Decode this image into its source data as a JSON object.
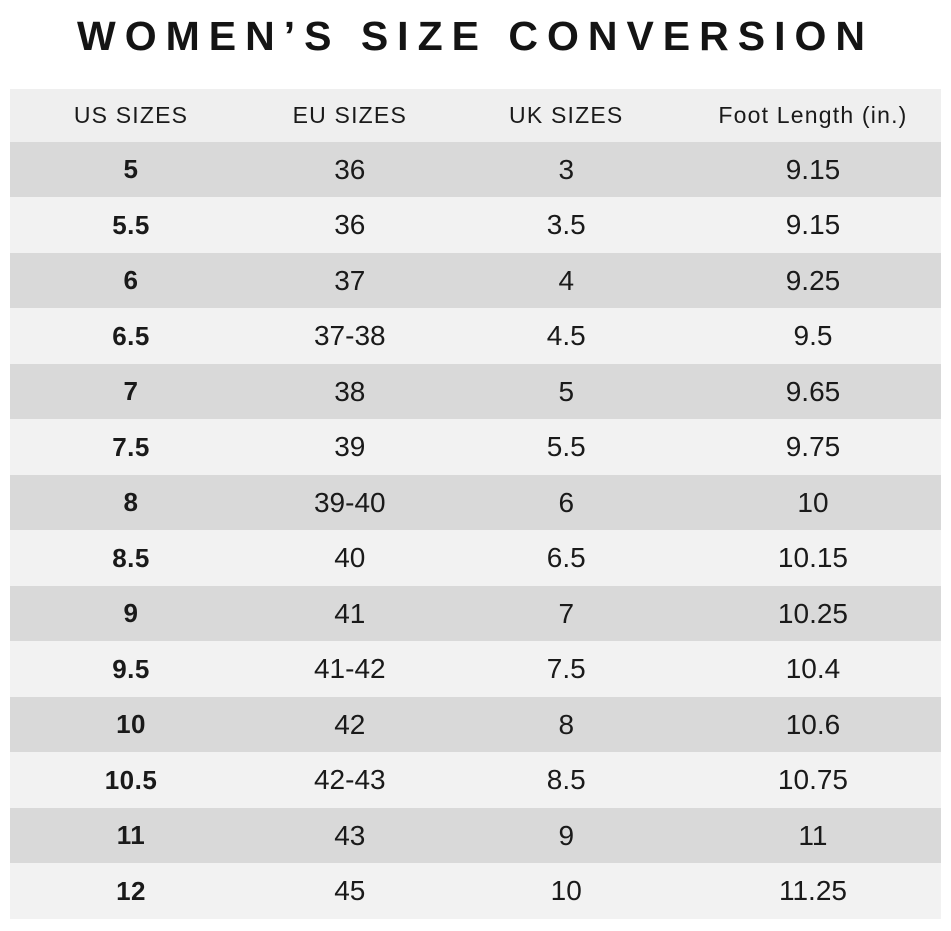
{
  "title": "WOMEN’S SIZE CONVERSION",
  "chart_data": {
    "type": "table",
    "title": "WOMEN’S SIZE CONVERSION",
    "columns": [
      "US SIZES",
      "EU SIZES",
      "UK SIZES",
      "Foot Length (in.)"
    ],
    "column_keys": [
      "us",
      "eu",
      "uk",
      "foot-length"
    ],
    "rows": [
      [
        "5",
        "36",
        "3",
        "9.15"
      ],
      [
        "5.5",
        "36",
        "3.5",
        "9.15"
      ],
      [
        "6",
        "37",
        "4",
        "9.25"
      ],
      [
        "6.5",
        "37-38",
        "4.5",
        "9.5"
      ],
      [
        "7",
        "38",
        "5",
        "9.65"
      ],
      [
        "7.5",
        "39",
        "5.5",
        "9.75"
      ],
      [
        "8",
        "39-40",
        "6",
        "10"
      ],
      [
        "8.5",
        "40",
        "6.5",
        "10.15"
      ],
      [
        "9",
        "41",
        "7",
        "10.25"
      ],
      [
        "9.5",
        "41-42",
        "7.5",
        "10.4"
      ],
      [
        "10",
        "42",
        "8",
        "10.6"
      ],
      [
        "10.5",
        "42-43",
        "8.5",
        "10.75"
      ],
      [
        "11",
        "43",
        "9",
        "11"
      ],
      [
        "12",
        "45",
        "10",
        "11.25"
      ]
    ],
    "layout_hints": {
      "row_stripe_pattern": "first data row dark, alternating",
      "bold_column": "US SIZES"
    }
  },
  "colors": {
    "row_dark": "#d9d9d9",
    "row_light": "#f2f2f2",
    "header_bg": "#efefef",
    "text": "#1a1a1a",
    "title_color": "#141414",
    "page_bg": "#ffffff"
  }
}
